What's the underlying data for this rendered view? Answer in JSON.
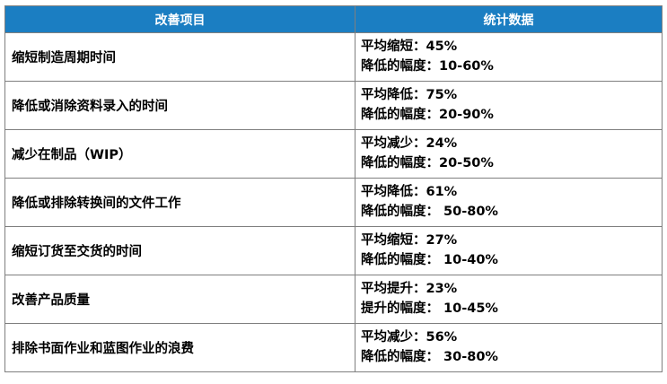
{
  "colors": {
    "header_bg": "#1b7ec2",
    "header_text": "#ffffff",
    "border": "#7f7f7f"
  },
  "table": {
    "headers": {
      "item": "改善项目",
      "stats": "统计数据"
    },
    "rows": [
      {
        "item": "缩短制造周期时间",
        "stat1": "平均缩短：45%",
        "stat2": "降低的幅度：10-60%"
      },
      {
        "item": "降低或消除资料录入的时间",
        "stat1": "平均降低：75%",
        "stat2": "降低的幅度：20-90%"
      },
      {
        "item": "减少在制品（WIP）",
        "stat1": "平均减少：24%",
        "stat2": "降低的幅度：20-50%"
      },
      {
        "item": "降低或排除转换间的文件工作",
        "stat1": "平均降低：61%",
        "stat2": "降低的幅度： 50-80%"
      },
      {
        "item": "缩短订货至交货的时间",
        "stat1": "平均缩短：27%",
        "stat2": "降低的幅度： 10-40%"
      },
      {
        "item": "改善产品质量",
        "stat1": "平均提升：23%",
        "stat2": "提升的幅度： 10-45%"
      },
      {
        "item": "排除书面作业和蓝图作业的浪费",
        "stat1": "平均减少：56%",
        "stat2": "降低的幅度： 30-80%"
      }
    ]
  }
}
